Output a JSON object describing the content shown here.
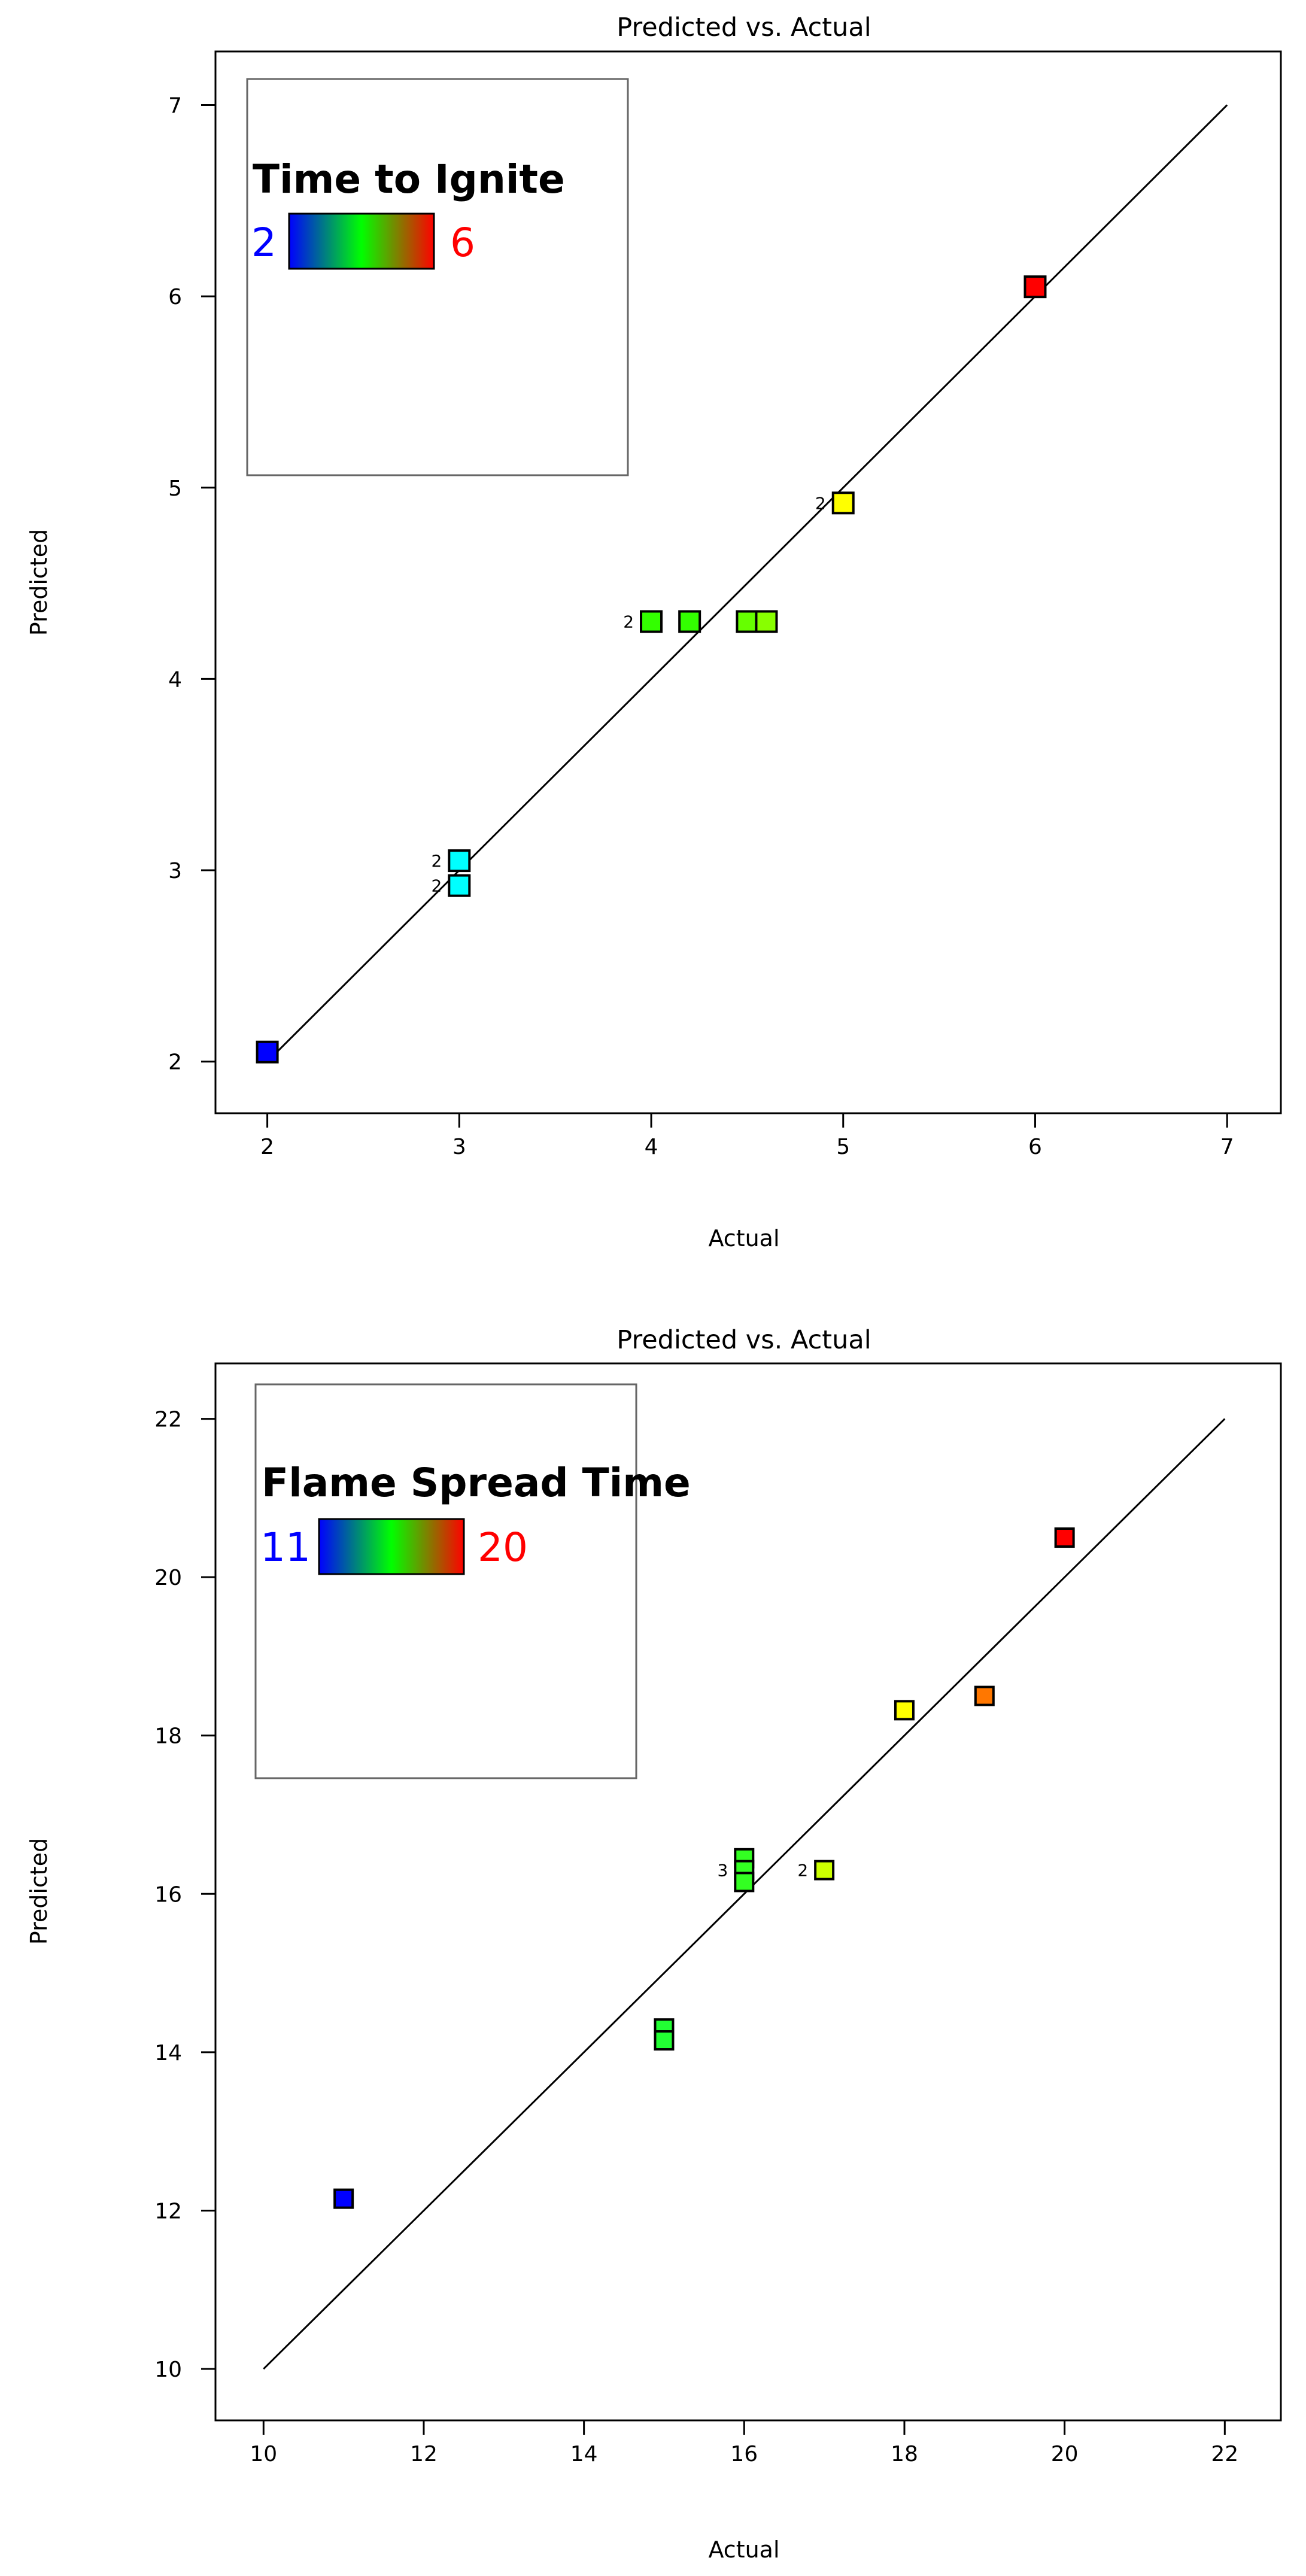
{
  "chart_data": [
    {
      "type": "scatter",
      "title": "Predicted vs. Actual",
      "xlabel": "Actual",
      "ylabel": "Predicted",
      "xlim": [
        1.73,
        7.28
      ],
      "ylim": [
        1.73,
        7.28
      ],
      "xticks": [
        2,
        3,
        4,
        5,
        6,
        7
      ],
      "yticks": [
        2,
        3,
        4,
        5,
        6,
        7
      ],
      "reference_line": [
        [
          2,
          2
        ],
        [
          7,
          7
        ]
      ],
      "legend": {
        "title": "Time to Ignite",
        "min_label": "2",
        "max_label": "6",
        "min": 2,
        "max": 6,
        "colors": [
          "#0000ff",
          "#00ff00",
          "#ff0000"
        ],
        "placement": "top-left"
      },
      "points": [
        {
          "x": 2.0,
          "y": 2.05,
          "color": "#0000ff"
        },
        {
          "x": 3.0,
          "y": 3.05,
          "color": "#00ffff",
          "count": "2"
        },
        {
          "x": 3.0,
          "y": 2.92,
          "color": "#00ffff",
          "count": "2"
        },
        {
          "x": 4.0,
          "y": 4.3,
          "color": "#33ff00",
          "count": "2"
        },
        {
          "x": 4.2,
          "y": 4.3,
          "color": "#33ff00"
        },
        {
          "x": 4.5,
          "y": 4.3,
          "color": "#66ff00"
        },
        {
          "x": 4.6,
          "y": 4.3,
          "color": "#88ff00"
        },
        {
          "x": 5.0,
          "y": 4.92,
          "color": "#ffff00",
          "count": "2"
        },
        {
          "x": 6.0,
          "y": 6.05,
          "color": "#ff0000"
        }
      ]
    },
    {
      "type": "scatter",
      "title": "Predicted vs. Actual",
      "xlabel": "Actual",
      "ylabel": "Predicted",
      "xlim": [
        9.4,
        22.7
      ],
      "ylim": [
        9.35,
        22.7
      ],
      "xticks": [
        10,
        12,
        14,
        16,
        18,
        20,
        22
      ],
      "yticks": [
        10,
        12,
        14,
        16,
        18,
        20,
        22
      ],
      "reference_line": [
        [
          10,
          10
        ],
        [
          22,
          22
        ]
      ],
      "legend": {
        "title": "Flame Spread Time",
        "min_label": "11",
        "max_label": "20",
        "min": 11,
        "max": 20,
        "colors": [
          "#0000ff",
          "#00ff00",
          "#ff0000"
        ],
        "placement": "top-left"
      },
      "points": [
        {
          "x": 11,
          "y": 12.15,
          "color": "#0000ff"
        },
        {
          "x": 15,
          "y": 14.3,
          "color": "#22ff33"
        },
        {
          "x": 15,
          "y": 14.15,
          "color": "#22ff33"
        },
        {
          "x": 16,
          "y": 16.45,
          "color": "#33ff22"
        },
        {
          "x": 16,
          "y": 16.3,
          "color": "#33ff22",
          "count": "3"
        },
        {
          "x": 16,
          "y": 16.15,
          "color": "#33ff22"
        },
        {
          "x": 17,
          "y": 16.3,
          "color": "#ccff00",
          "count": "2"
        },
        {
          "x": 18,
          "y": 18.32,
          "color": "#ffff00"
        },
        {
          "x": 19,
          "y": 18.5,
          "color": "#ff7700"
        },
        {
          "x": 20,
          "y": 20.5,
          "color": "#ff0000"
        }
      ]
    }
  ]
}
